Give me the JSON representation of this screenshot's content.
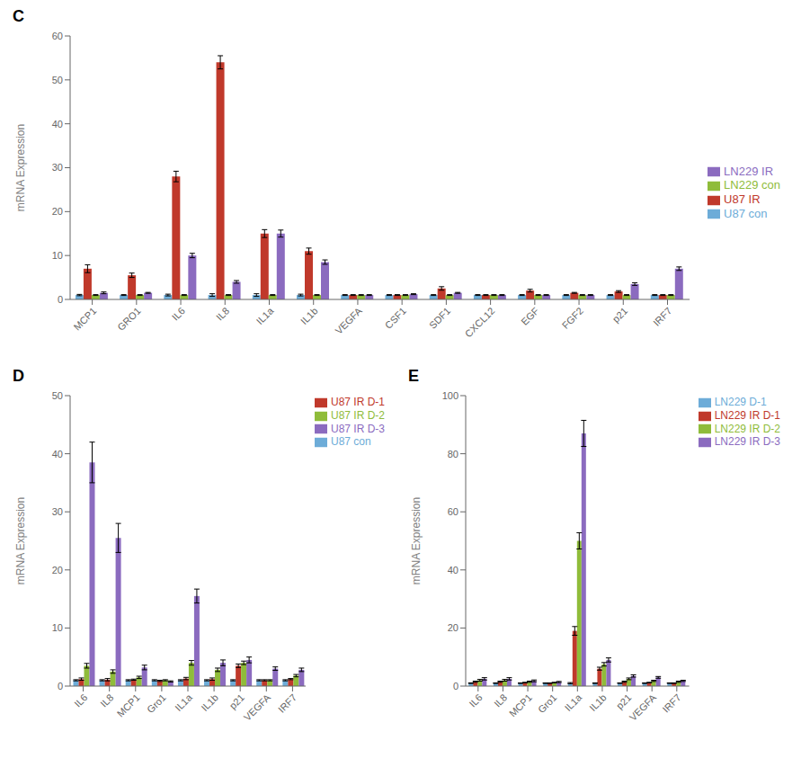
{
  "chart_data": [
    {
      "type": "bar",
      "title": "C",
      "ylabel": "mRNA Expression",
      "categories": [
        "MCP1",
        "GRO1",
        "IL6",
        "IL8",
        "IL1a",
        "IL1b",
        "VEGFA",
        "CSF1",
        "SDF1",
        "CXCL12",
        "EGF",
        "FGF2",
        "p21",
        "IRF7"
      ],
      "series": [
        {
          "name": "U87 con",
          "color": "#6dacd8",
          "values": [
            1.0,
            1.0,
            1.0,
            1.0,
            1.0,
            1.0,
            1.0,
            1.0,
            1.0,
            1.0,
            1.0,
            1.0,
            1.0,
            1.0
          ],
          "errors": [
            0.15,
            0.1,
            0.2,
            0.3,
            0.3,
            0.2,
            0.1,
            0.1,
            0.1,
            0.1,
            0.1,
            0.1,
            0.1,
            0.1
          ]
        },
        {
          "name": "U87 IR",
          "color": "#c0392b",
          "values": [
            7.0,
            5.5,
            28.0,
            54.0,
            15.0,
            11.0,
            1.0,
            1.0,
            2.5,
            1.0,
            2.0,
            1.5,
            1.8,
            1.0
          ],
          "errors": [
            0.9,
            0.5,
            1.2,
            1.5,
            0.9,
            0.7,
            0.1,
            0.1,
            0.4,
            0.1,
            0.3,
            0.1,
            0.2,
            0.1
          ]
        },
        {
          "name": "LN229 con",
          "color": "#8fbc3a",
          "values": [
            1.0,
            1.0,
            1.0,
            1.0,
            1.0,
            1.0,
            1.0,
            1.0,
            1.0,
            1.0,
            1.0,
            1.0,
            1.0,
            1.0
          ],
          "errors": [
            0.1,
            0.1,
            0.1,
            0.1,
            0.1,
            0.1,
            0.1,
            0.1,
            0.1,
            0.1,
            0.1,
            0.1,
            0.1,
            0.1
          ]
        },
        {
          "name": "LN229 IR",
          "color": "#8b6bbf",
          "values": [
            1.5,
            1.5,
            10.0,
            4.0,
            15.0,
            8.5,
            1.0,
            1.2,
            1.5,
            1.0,
            1.0,
            1.0,
            3.5,
            7.0
          ],
          "errors": [
            0.2,
            0.1,
            0.5,
            0.3,
            0.8,
            0.5,
            0.1,
            0.1,
            0.1,
            0.1,
            0.1,
            0.1,
            0.3,
            0.4
          ]
        }
      ],
      "ylim": [
        0,
        60
      ],
      "yticks": [
        0,
        10,
        20,
        30,
        40,
        50,
        60
      ],
      "grid": false,
      "legend": "right"
    },
    {
      "type": "bar",
      "title": "D",
      "ylabel": "mRNA Expression",
      "categories": [
        "IL6",
        "IL8",
        "MCP1",
        "Gro1",
        "IL1a",
        "IL1b",
        "p21",
        "VEGFA",
        "IRF7"
      ],
      "series": [
        {
          "name": "U87 con",
          "color": "#6dacd8",
          "values": [
            1.0,
            1.0,
            1.0,
            1.0,
            1.0,
            1.0,
            1.0,
            1.0,
            1.0
          ],
          "errors": [
            0.1,
            0.1,
            0.1,
            0.1,
            0.1,
            0.1,
            0.1,
            0.1,
            0.1
          ]
        },
        {
          "name": "U87 IR D-1",
          "color": "#c0392b",
          "values": [
            1.2,
            1.1,
            1.1,
            0.9,
            1.3,
            1.2,
            3.5,
            1.0,
            1.2
          ],
          "errors": [
            0.2,
            0.2,
            0.1,
            0.1,
            0.2,
            0.2,
            0.3,
            0.1,
            0.1
          ]
        },
        {
          "name": "U87 IR D-2",
          "color": "#8fbc3a",
          "values": [
            3.5,
            2.5,
            1.5,
            1.0,
            4.0,
            2.8,
            4.0,
            1.0,
            1.8
          ],
          "errors": [
            0.4,
            0.3,
            0.2,
            0.1,
            0.4,
            0.3,
            0.3,
            0.1,
            0.2
          ]
        },
        {
          "name": "U87 IR D-3",
          "color": "#8b6bbf",
          "values": [
            38.5,
            25.5,
            3.2,
            0.8,
            15.5,
            4.0,
            4.5,
            3.0,
            2.8
          ],
          "errors": [
            3.5,
            2.5,
            0.4,
            0.1,
            1.2,
            0.5,
            0.5,
            0.3,
            0.3
          ]
        }
      ],
      "ylim": [
        0,
        50
      ],
      "yticks": [
        0,
        10,
        20,
        30,
        40,
        50
      ],
      "grid": false,
      "legend": "upper right"
    },
    {
      "type": "bar",
      "title": "E",
      "ylabel": "mRNA Expression",
      "categories": [
        "IL6",
        "IL8",
        "MCP1",
        "Gro1",
        "IL1a",
        "IL1b",
        "p21",
        "VEGFA",
        "IRF7"
      ],
      "series": [
        {
          "name": "LN229 D-1",
          "color": "#6dacd8",
          "values": [
            1.0,
            1.0,
            1.0,
            1.0,
            1.0,
            1.0,
            1.0,
            1.0,
            1.0
          ],
          "errors": [
            0.1,
            0.1,
            0.1,
            0.1,
            0.2,
            0.1,
            0.1,
            0.1,
            0.1
          ]
        },
        {
          "name": "LN229 IR D-1",
          "color": "#c0392b",
          "values": [
            1.5,
            1.5,
            1.2,
            1.0,
            19.0,
            6.0,
            1.5,
            1.2,
            1.0
          ],
          "errors": [
            0.2,
            0.2,
            0.1,
            0.1,
            1.5,
            0.5,
            0.2,
            0.1,
            0.1
          ]
        },
        {
          "name": "LN229 IR D-2",
          "color": "#8fbc3a",
          "values": [
            2.0,
            2.0,
            1.5,
            1.2,
            50.0,
            7.5,
            2.5,
            1.8,
            1.5
          ],
          "errors": [
            0.3,
            0.3,
            0.2,
            0.1,
            2.8,
            0.6,
            0.3,
            0.2,
            0.2
          ]
        },
        {
          "name": "LN229 IR D-3",
          "color": "#8b6bbf",
          "values": [
            2.5,
            2.5,
            1.8,
            1.4,
            87.0,
            9.0,
            3.5,
            3.0,
            1.8
          ],
          "errors": [
            0.4,
            0.4,
            0.3,
            0.2,
            4.5,
            0.7,
            0.4,
            0.3,
            0.2
          ]
        }
      ],
      "ylim": [
        0,
        100
      ],
      "yticks": [
        0,
        20,
        40,
        60,
        80,
        100
      ],
      "grid": false,
      "legend": "upper right"
    }
  ]
}
